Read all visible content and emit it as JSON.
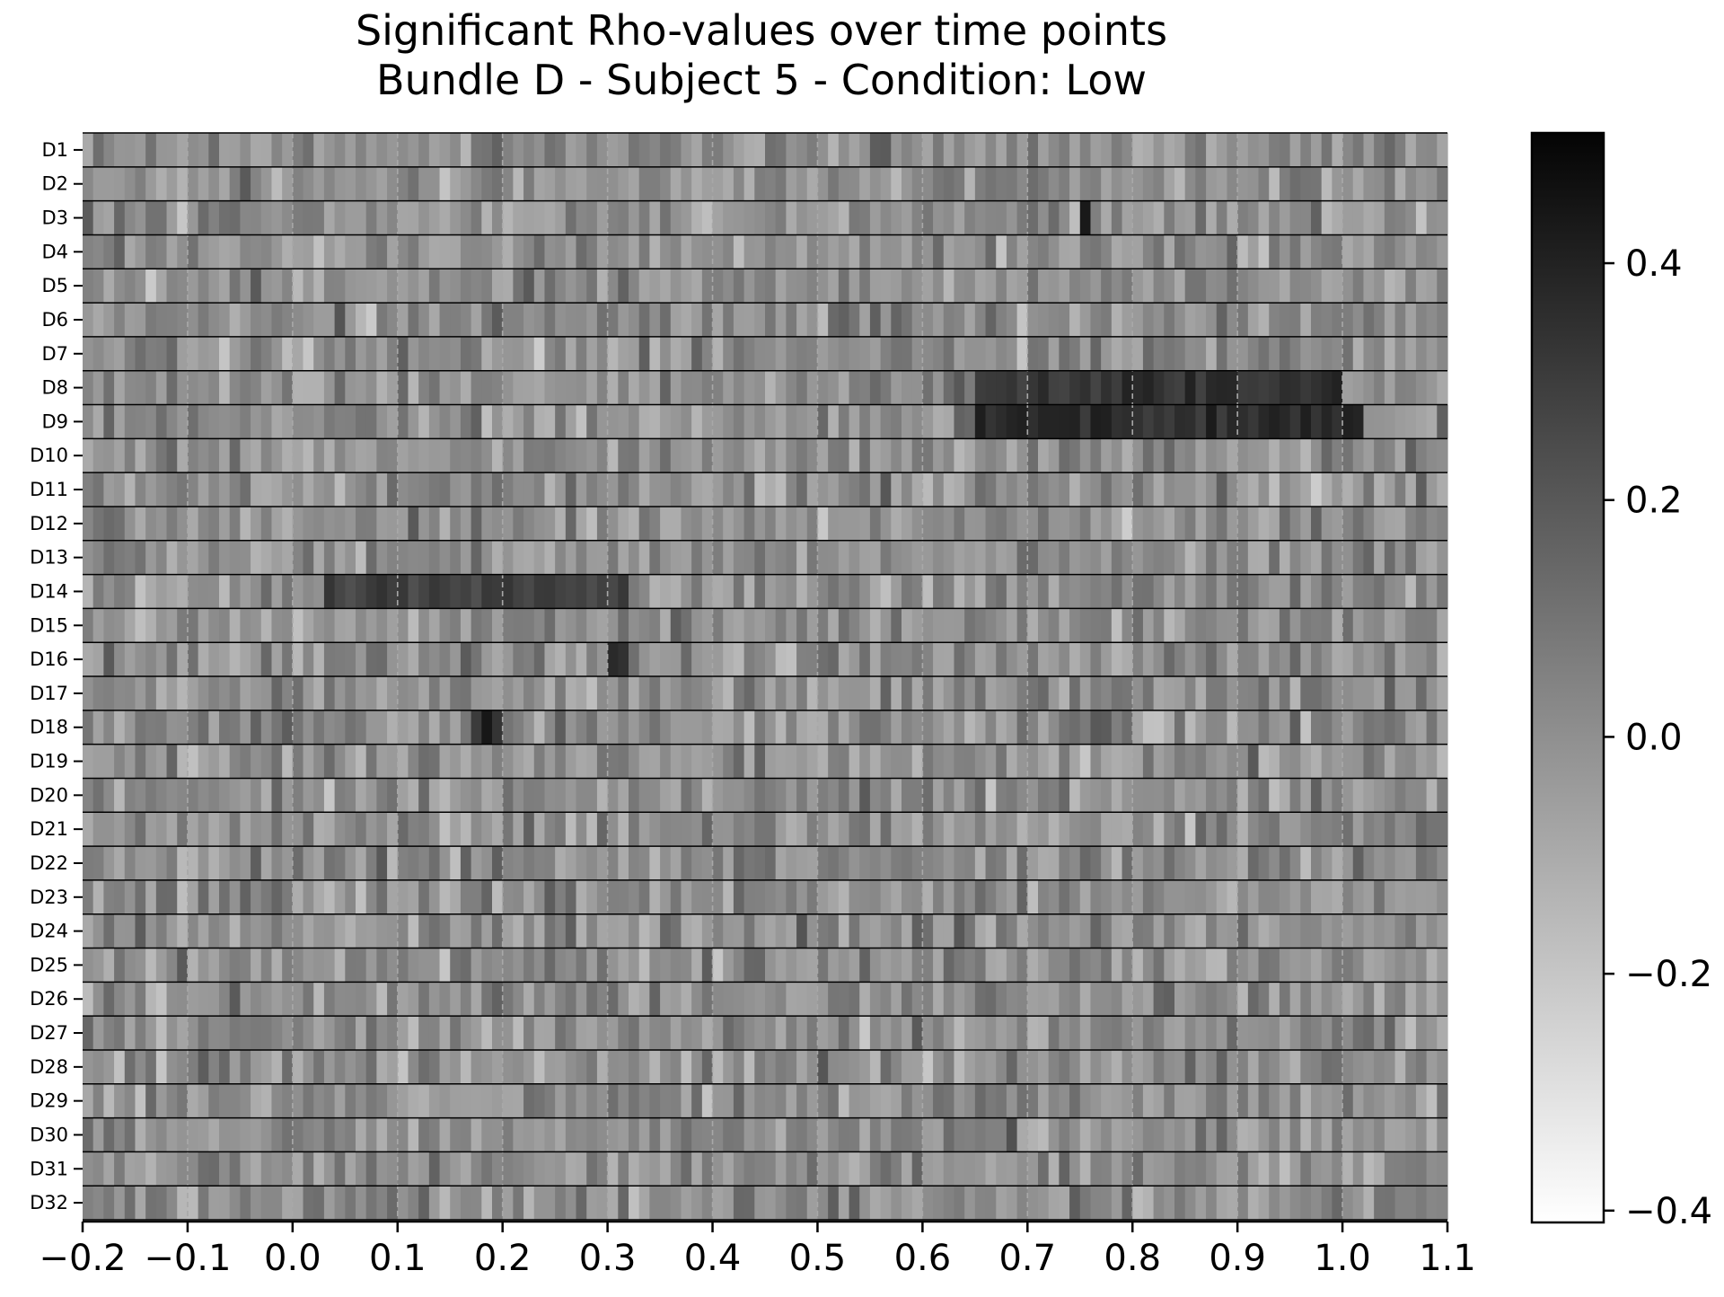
{
  "chart_data": {
    "type": "heatmap",
    "title_lines": [
      "Significant Rho-values over time points",
      "Bundle D - Subject 5 - Condition: Low"
    ],
    "xlabel": "",
    "ylabel": "",
    "x_range": [
      -0.2,
      1.1
    ],
    "x_ticks": [
      -0.2,
      -0.1,
      0.0,
      0.1,
      0.2,
      0.3,
      0.4,
      0.5,
      0.6,
      0.7,
      0.8,
      0.9,
      1.0,
      1.1
    ],
    "x_tick_labels": [
      "−0.2",
      "−0.1",
      "0.0",
      "0.1",
      "0.2",
      "0.3",
      "0.4",
      "0.5",
      "0.6",
      "0.7",
      "0.8",
      "0.9",
      "1.0",
      "1.1"
    ],
    "row_labels": [
      "D1",
      "D2",
      "D3",
      "D4",
      "D5",
      "D6",
      "D7",
      "D8",
      "D9",
      "D10",
      "D11",
      "D12",
      "D13",
      "D14",
      "D15",
      "D16",
      "D17",
      "D18",
      "D19",
      "D20",
      "D21",
      "D22",
      "D23",
      "D24",
      "D25",
      "D26",
      "D27",
      "D28",
      "D29",
      "D30",
      "D31",
      "D32"
    ],
    "time_bins": 130,
    "colorbar": {
      "range": [
        -0.41,
        0.51
      ],
      "ticks": [
        0.4,
        0.2,
        0.0,
        -0.2,
        -0.4
      ],
      "tick_labels": [
        "0.4",
        "0.2",
        "0.0",
        "−0.2",
        "−0.4"
      ],
      "cmap": "Greys"
    },
    "grid": "vertical dashed lines at each x tick; horizontal black separators between rows",
    "notable_features": [
      {
        "row": "D8",
        "x_range": [
          0.65,
          1.0
        ],
        "rho": 0.38
      },
      {
        "row": "D9",
        "x_range": [
          0.65,
          1.02
        ],
        "rho": 0.4
      },
      {
        "row": "D14",
        "x_range": [
          0.03,
          0.32
        ],
        "rho": 0.32
      },
      {
        "row": "D18",
        "x_range": [
          0.17,
          0.2
        ],
        "rho": 0.42
      },
      {
        "row": "D16",
        "x_range": [
          0.3,
          0.32
        ],
        "rho": 0.42
      },
      {
        "row": "D3",
        "x_range": [
          0.75,
          0.76
        ],
        "rho": 0.48
      }
    ]
  }
}
